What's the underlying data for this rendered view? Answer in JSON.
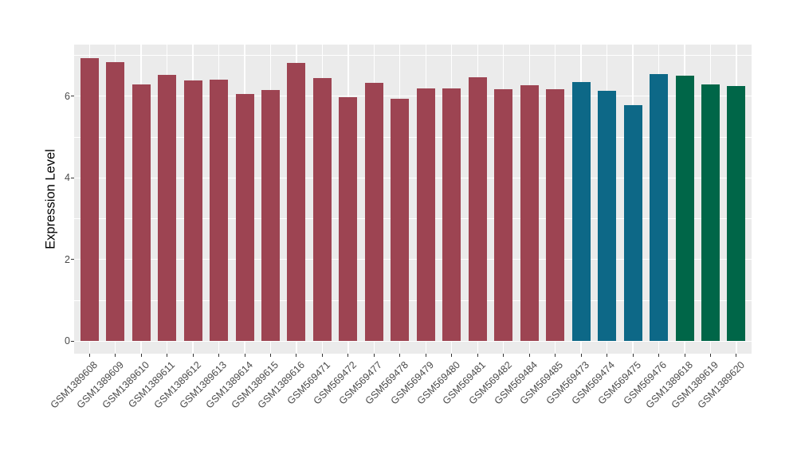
{
  "chart_data": {
    "type": "bar",
    "title": "",
    "xlabel": "",
    "ylabel": "Expression Level",
    "ylim": [
      0,
      7.26
    ],
    "yticks": [
      0,
      2,
      4,
      6
    ],
    "yticks_minor": [
      1,
      3,
      5,
      7
    ],
    "grid": true,
    "legend": "none",
    "panel_bg": "#ebebeb",
    "grid_color": "#ffffff",
    "axis_text_color": "#4a4a4a",
    "categories": [
      "GSM1389608",
      "GSM1389609",
      "GSM1389610",
      "GSM1389611",
      "GSM1389612",
      "GSM1389613",
      "GSM1389614",
      "GSM1389615",
      "GSM1389616",
      "GSM569471",
      "GSM569472",
      "GSM569477",
      "GSM569478",
      "GSM569479",
      "GSM569480",
      "GSM569481",
      "GSM569482",
      "GSM569484",
      "GSM569485",
      "GSM569473",
      "GSM569474",
      "GSM569475",
      "GSM569476",
      "GSM1389618",
      "GSM1389619",
      "GSM1389620"
    ],
    "values": [
      6.92,
      6.84,
      6.29,
      6.52,
      6.38,
      6.41,
      6.05,
      6.15,
      6.81,
      6.44,
      5.97,
      6.32,
      5.94,
      6.19,
      6.19,
      6.46,
      6.17,
      6.26,
      6.16,
      6.35,
      6.12,
      5.77,
      6.54,
      6.5,
      6.29,
      6.25
    ],
    "groups": [
      "group1",
      "group1",
      "group1",
      "group1",
      "group1",
      "group1",
      "group1",
      "group1",
      "group1",
      "group1",
      "group1",
      "group1",
      "group1",
      "group1",
      "group1",
      "group1",
      "group1",
      "group1",
      "group1",
      "group2",
      "group2",
      "group2",
      "group2",
      "group3",
      "group3",
      "group3"
    ],
    "group_colors": {
      "group1": "#9d4452",
      "group2": "#0d6887",
      "group3": "#006648"
    }
  }
}
